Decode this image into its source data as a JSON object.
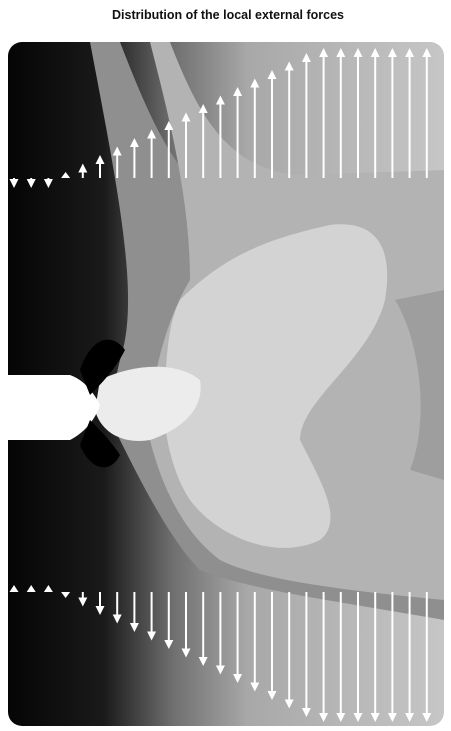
{
  "header": {
    "title": "Distribution of the local external forces"
  }
}
